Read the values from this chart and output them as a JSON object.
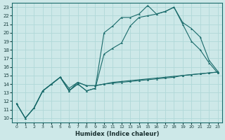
{
  "xlabel": "Humidex (Indice chaleur)",
  "ylabel": "",
  "bg_color": "#cde8e8",
  "line_color": "#1a6b6b",
  "grid_color": "#b0d8d8",
  "xlim": [
    -0.5,
    23.5
  ],
  "ylim": [
    9.5,
    23.5
  ],
  "xticks": [
    0,
    1,
    2,
    3,
    4,
    5,
    6,
    7,
    8,
    9,
    10,
    11,
    12,
    13,
    14,
    15,
    16,
    17,
    18,
    19,
    20,
    21,
    22,
    23
  ],
  "yticks": [
    10,
    11,
    12,
    13,
    14,
    15,
    16,
    17,
    18,
    19,
    20,
    21,
    22,
    23
  ],
  "line1_x": [
    0,
    1,
    2,
    3,
    4,
    5,
    6,
    7,
    8,
    9,
    10,
    11,
    12,
    13,
    14,
    15,
    16,
    17,
    18,
    19,
    20,
    21,
    22,
    23
  ],
  "line1_y": [
    11.7,
    10.0,
    11.2,
    13.2,
    14.0,
    14.8,
    13.2,
    14.0,
    13.2,
    13.5,
    17.5,
    18.2,
    18.8,
    20.8,
    21.8,
    22.0,
    22.2,
    22.5,
    23.0,
    21.2,
    20.5,
    19.5,
    16.8,
    15.5
  ],
  "line2_x": [
    0,
    1,
    2,
    3,
    4,
    5,
    6,
    7,
    8,
    9,
    10,
    11,
    12,
    13,
    14,
    15,
    16,
    17,
    18,
    19,
    20,
    21,
    22,
    23
  ],
  "line2_y": [
    11.7,
    10.0,
    11.2,
    13.2,
    14.0,
    14.8,
    13.2,
    14.0,
    13.2,
    13.5,
    20.0,
    20.8,
    21.8,
    21.8,
    22.2,
    23.2,
    22.2,
    22.5,
    23.0,
    21.0,
    19.0,
    18.0,
    16.5,
    15.3
  ],
  "line3_x": [
    0,
    1,
    2,
    3,
    4,
    5,
    6,
    7,
    8,
    9,
    10,
    11,
    12,
    13,
    14,
    15,
    16,
    17,
    18,
    19,
    20,
    21,
    22,
    23
  ],
  "line3_y": [
    11.7,
    10.0,
    11.2,
    13.2,
    14.0,
    14.8,
    13.5,
    14.2,
    13.8,
    13.8,
    14.0,
    14.1,
    14.2,
    14.3,
    14.4,
    14.5,
    14.6,
    14.7,
    14.8,
    15.0,
    15.1,
    15.2,
    15.3,
    15.4
  ],
  "line4_x": [
    2,
    3,
    4,
    5,
    6,
    7,
    8,
    9,
    10,
    11,
    12,
    13,
    14,
    15,
    16,
    17,
    18,
    19,
    20,
    21,
    22,
    23
  ],
  "line4_y": [
    11.2,
    13.2,
    14.0,
    14.8,
    13.2,
    14.2,
    13.8,
    13.8,
    14.0,
    14.2,
    14.3,
    14.4,
    14.5,
    14.6,
    14.7,
    14.8,
    14.9,
    15.0,
    15.1,
    15.2,
    15.3,
    15.4
  ]
}
